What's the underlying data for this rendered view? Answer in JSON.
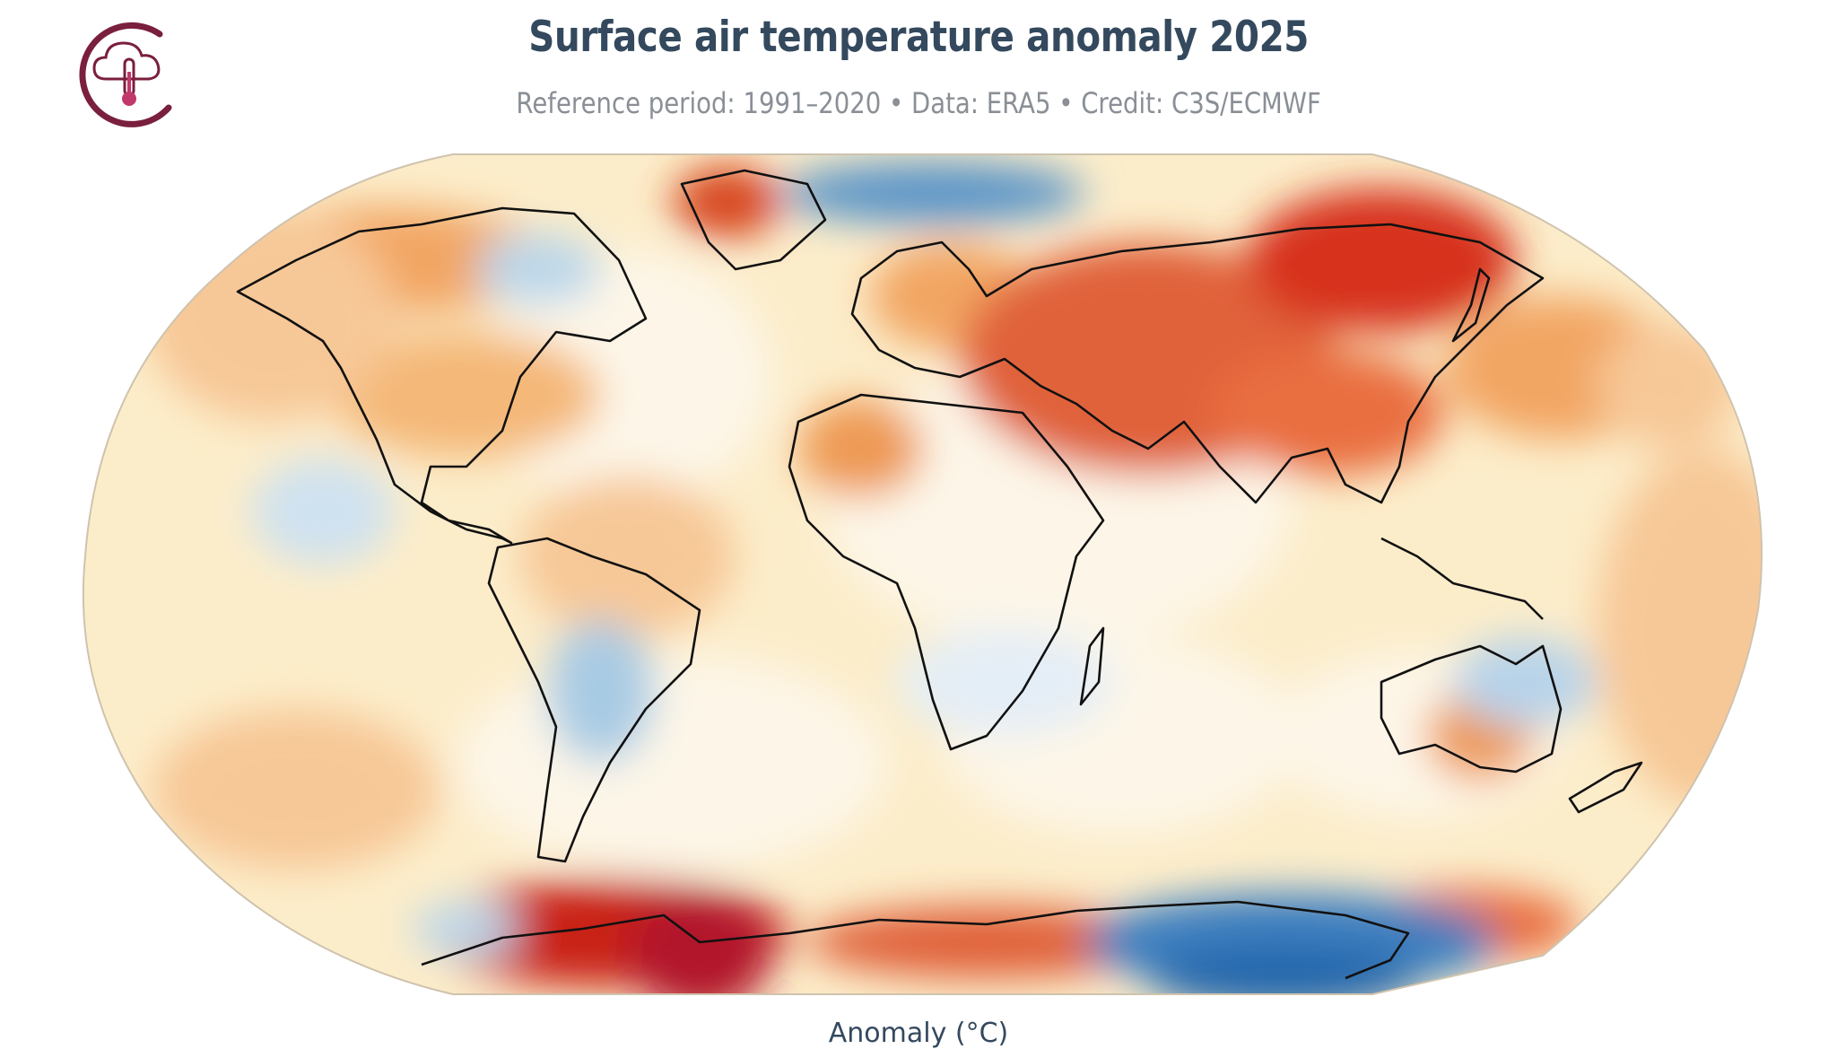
{
  "header": {
    "title": "Surface air temperature anomaly 2025",
    "subtitle": "Reference period: 1991–2020 • Data: ERA5 • Credit: C3S/ECMWF"
  },
  "logo": {
    "icon": "cloud-thermometer-icon",
    "color": "#7a1f3d"
  },
  "map": {
    "projection": "robinson",
    "legend_label": "Anomaly (°C)",
    "colors": {
      "cold_strong": "#2166ac",
      "cold": "#92c5de",
      "neutral": "#fdf3dc",
      "warm": "#fdd49e",
      "warm_mid": "#f4a460",
      "hot": "#d7301f",
      "hot_strong": "#b2182b",
      "coast": "#111111"
    }
  }
}
